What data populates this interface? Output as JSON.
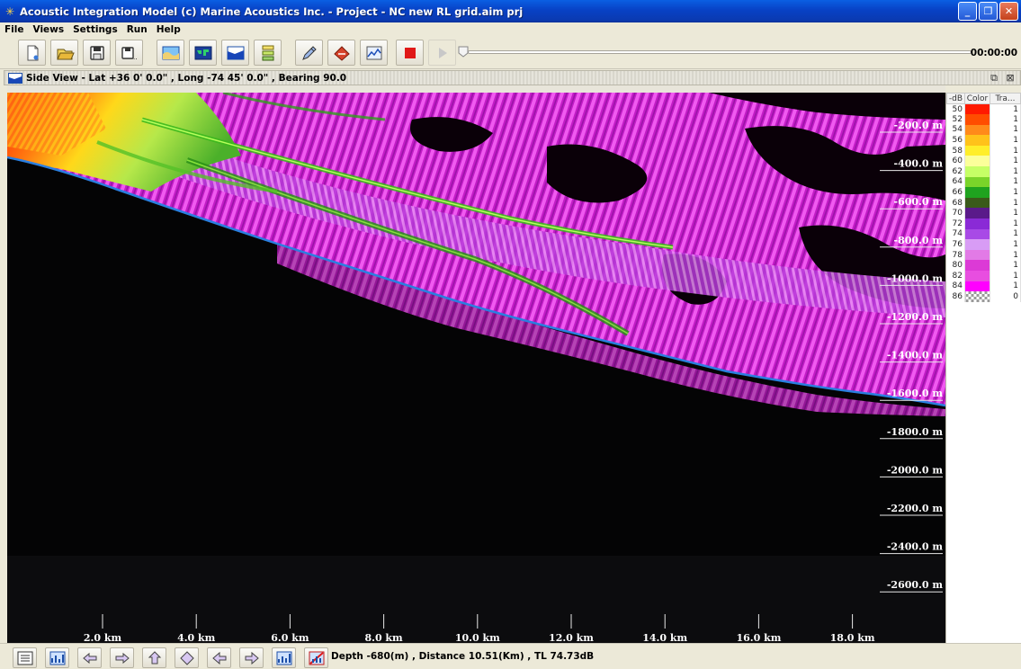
{
  "window": {
    "title": "Acoustic Integration Model (c) Marine Acoustics Inc. - Project - NC new RL grid.aim prj",
    "controls": [
      "minimize",
      "maximize",
      "close"
    ]
  },
  "menu": [
    "File",
    "Views",
    "Settings",
    "Run",
    "Help"
  ],
  "toolbar": {
    "buttons": [
      "new-icon",
      "open-icon",
      "save-icon",
      "save-as-icon",
      "map-view-icon",
      "world-map-icon",
      "side-view-icon",
      "layers-icon",
      "edit-icon",
      "ship-icon",
      "chart-icon",
      "stop-icon",
      "play-icon"
    ],
    "playback_progress": 0,
    "time": "00:00:00"
  },
  "view": {
    "title": "Side View - Lat +36 0' 0.0\" , Long -74 45' 0.0\" , Bearing 90.0"
  },
  "plot": {
    "depth_labels": [
      "-200.0 m",
      "-400.0 m",
      "-600.0 m",
      "-800.0 m",
      "-1000.0 m",
      "-1200.0 m",
      "-1400.0 m",
      "-1600.0 m",
      "-1800.0 m",
      "-2000.0 m",
      "-2200.0 m",
      "-2400.0 m",
      "-2600.0 m"
    ],
    "range_labels": [
      "2.0 km",
      "4.0 km",
      "6.0 km",
      "8.0 km",
      "10.0 km",
      "12.0 km",
      "14.0 km",
      "16.0 km",
      "18.0 km"
    ]
  },
  "legend": {
    "headers": [
      "-dB",
      "Color",
      "Tra..."
    ],
    "rows": [
      {
        "db": "50",
        "color": "#ff1a00",
        "tr": "1"
      },
      {
        "db": "52",
        "color": "#ff4d00",
        "tr": "1"
      },
      {
        "db": "54",
        "color": "#ff8a1a",
        "tr": "1"
      },
      {
        "db": "56",
        "color": "#ffc21a",
        "tr": "1"
      },
      {
        "db": "58",
        "color": "#ffee2a",
        "tr": "1"
      },
      {
        "db": "60",
        "color": "#fbff9a",
        "tr": "1"
      },
      {
        "db": "62",
        "color": "#c6ff66",
        "tr": "1"
      },
      {
        "db": "64",
        "color": "#7ad42a",
        "tr": "1"
      },
      {
        "db": "66",
        "color": "#1fa31f",
        "tr": "1"
      },
      {
        "db": "68",
        "color": "#3a5a1a",
        "tr": "1"
      },
      {
        "db": "70",
        "color": "#5a1a8a",
        "tr": "1"
      },
      {
        "db": "72",
        "color": "#8a2ad6",
        "tr": "1"
      },
      {
        "db": "74",
        "color": "#a84ae6",
        "tr": "1"
      },
      {
        "db": "76",
        "color": "#d89cf5",
        "tr": "1"
      },
      {
        "db": "78",
        "color": "#e27ae6",
        "tr": "1"
      },
      {
        "db": "80",
        "color": "#dc3ad6",
        "tr": "1"
      },
      {
        "db": "82",
        "color": "#e84ee0",
        "tr": "1"
      },
      {
        "db": "84",
        "color": "#ff00ff",
        "tr": "1"
      },
      {
        "db": "86",
        "color": "checker",
        "tr": "0"
      }
    ]
  },
  "bottom_toolbar": [
    "list-icon",
    "chart-icon",
    "back-double-icon",
    "forward-double-icon",
    "up-icon",
    "diamond-icon",
    "left-arrow-icon",
    "right-arrow-icon",
    "graph-icon",
    "graph-red-icon"
  ],
  "status": "Depth -680(m) , Distance 10.51(Km) , TL 74.73dB"
}
